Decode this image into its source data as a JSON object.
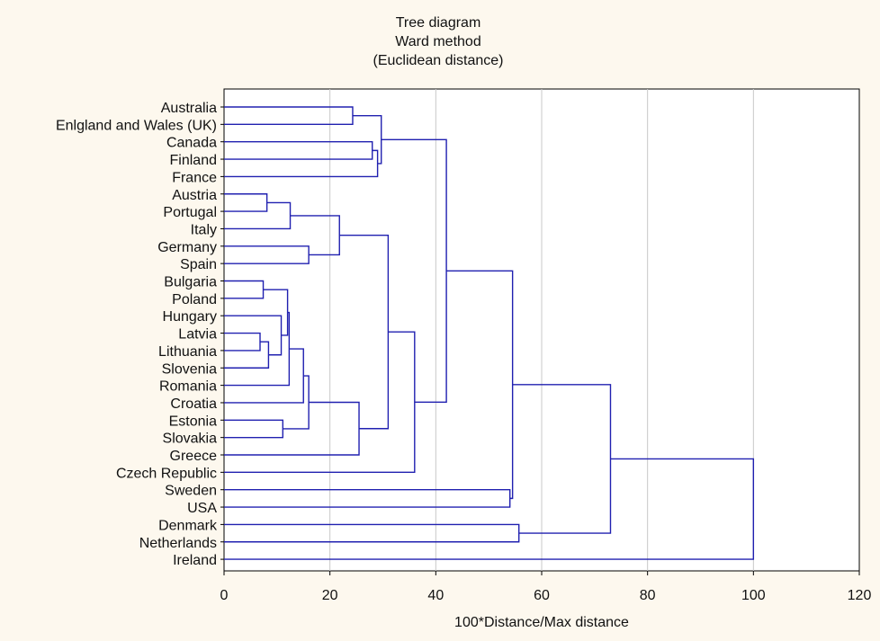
{
  "chart_data": {
    "type": "dendrogram",
    "title": [
      "Tree diagram",
      "Ward method",
      "(Euclidean distance)"
    ],
    "xlabel": "100*Distance/Max distance",
    "xlim": [
      0,
      120
    ],
    "xticks": [
      0,
      20,
      40,
      60,
      80,
      100,
      120
    ],
    "grid": true,
    "leaves": [
      "Australia",
      "Enlgland and Wales (UK)",
      "Canada",
      "Finland",
      "France",
      "Austria",
      "Portugal",
      "Italy",
      "Germany",
      "Spain",
      "Bulgaria",
      "Poland",
      "Hungary",
      "Latvia",
      "Lithuania",
      "Slovenia",
      "Romania",
      "Croatia",
      "Estonia",
      "Slovakia",
      "Greece",
      "Czech Republic",
      "Sweden",
      "USA",
      "Denmark",
      "Netherlands",
      "Ireland"
    ],
    "merges": [
      {
        "a": "L:Australia",
        "b": "L:Enlgland and Wales (UK)",
        "height": 24.3
      },
      {
        "a": "L:Canada",
        "b": "L:Finland",
        "height": 28.0
      },
      {
        "a": "L:France",
        "b": "N:1",
        "height": 29.0
      },
      {
        "a": "N:0",
        "b": "N:2",
        "height": 29.7
      },
      {
        "a": "L:Austria",
        "b": "L:Portugal",
        "height": 8.1
      },
      {
        "a": "N:4",
        "b": "L:Italy",
        "height": 12.5
      },
      {
        "a": "L:Germany",
        "b": "L:Spain",
        "height": 16.0
      },
      {
        "a": "N:5",
        "b": "N:6",
        "height": 21.8
      },
      {
        "a": "L:Bulgaria",
        "b": "L:Poland",
        "height": 7.4
      },
      {
        "a": "L:Latvia",
        "b": "L:Lithuania",
        "height": 6.8
      },
      {
        "a": "N:9",
        "b": "L:Slovenia",
        "height": 8.4
      },
      {
        "a": "L:Hungary",
        "b": "N:10",
        "height": 10.8
      },
      {
        "a": "N:8",
        "b": "N:11",
        "height": 12.0
      },
      {
        "a": "N:12",
        "b": "L:Romania",
        "height": 12.3
      },
      {
        "a": "N:13",
        "b": "L:Croatia",
        "height": 15.0
      },
      {
        "a": "L:Estonia",
        "b": "L:Slovakia",
        "height": 11.1
      },
      {
        "a": "N:14",
        "b": "N:15",
        "height": 16.0
      },
      {
        "a": "N:16",
        "b": "L:Greece",
        "height": 25.5
      },
      {
        "a": "N:7",
        "b": "N:17",
        "height": 31.0
      },
      {
        "a": "N:18",
        "b": "L:Czech Republic",
        "height": 36.0
      },
      {
        "a": "N:3",
        "b": "N:19",
        "height": 42.0
      },
      {
        "a": "L:Sweden",
        "b": "L:USA",
        "height": 54.0
      },
      {
        "a": "N:20",
        "b": "N:21",
        "height": 54.5
      },
      {
        "a": "L:Denmark",
        "b": "L:Netherlands",
        "height": 55.7
      },
      {
        "a": "N:22",
        "b": "N:23",
        "height": 73.0
      },
      {
        "a": "N:24",
        "b": "L:Ireland",
        "height": 100.0
      }
    ]
  }
}
